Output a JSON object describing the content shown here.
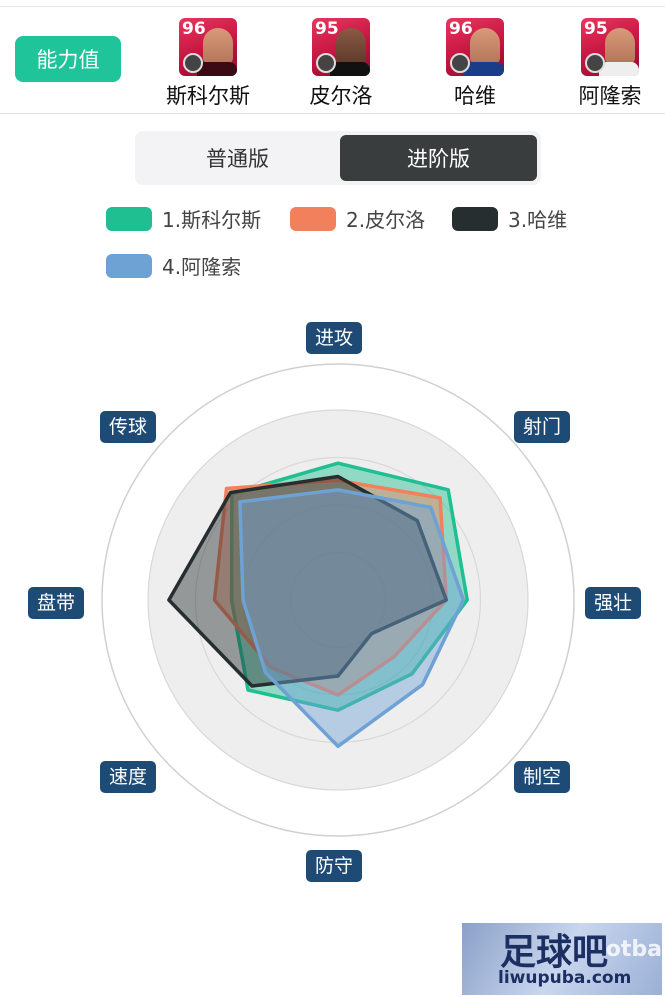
{
  "header": {
    "ability_label": "能力值",
    "players": [
      {
        "rating": "96",
        "name": "斯科尔斯"
      },
      {
        "rating": "95",
        "name": "皮尔洛"
      },
      {
        "rating": "96",
        "name": "哈维"
      },
      {
        "rating": "95",
        "name": "阿隆索"
      }
    ]
  },
  "version_toggle": {
    "normal": "普通版",
    "advanced": "进阶版",
    "selected": "进阶版"
  },
  "chart_data": {
    "type": "radar",
    "axes": [
      "进攻",
      "射门",
      "强壮",
      "制空",
      "防守",
      "速度",
      "盘带",
      "传球"
    ],
    "rmax": 100,
    "series": [
      {
        "name": "1.斯科尔斯",
        "color": "#1fbf92",
        "values": [
          72,
          82,
          68,
          55,
          58,
          67,
          56,
          79
        ]
      },
      {
        "name": "2.皮尔洛",
        "color": "#f2805c",
        "values": [
          63,
          76,
          57,
          42,
          50,
          50,
          65,
          83
        ]
      },
      {
        "name": "3.哈维",
        "color": "#262e30",
        "values": [
          65,
          59,
          57,
          25,
          40,
          64,
          89,
          80
        ]
      },
      {
        "name": "4.阿隆索",
        "color": "#6ea1d4",
        "values": [
          58,
          69,
          66,
          63,
          77,
          54,
          50,
          73
        ]
      }
    ]
  },
  "watermark": {
    "main": "足球吧",
    "sub": "liwupuba.com",
    "bg": "otba"
  }
}
